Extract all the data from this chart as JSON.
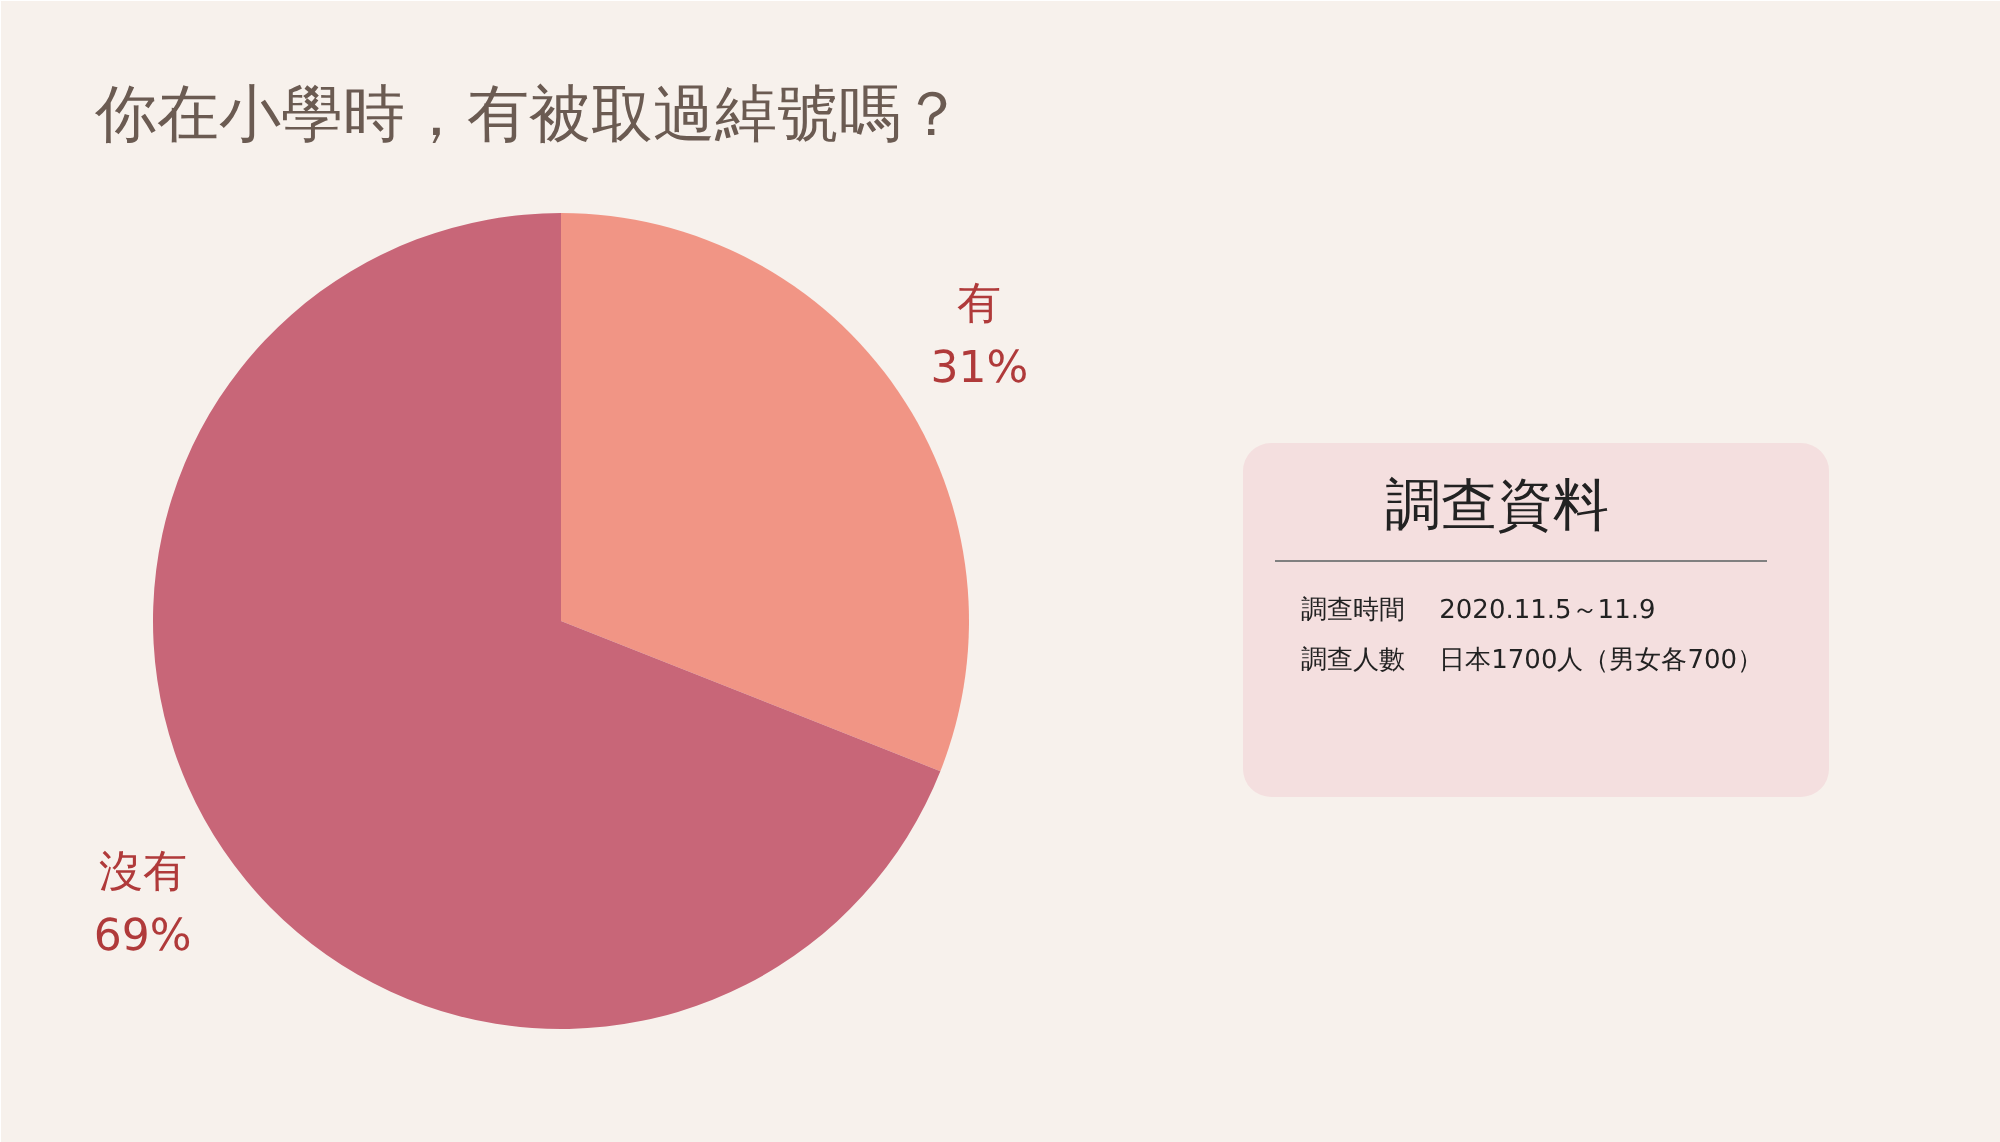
{
  "chart_data": {
    "type": "pie",
    "title": "你在小學時，有被取過綽號嗎？",
    "categories": [
      "有",
      "沒有"
    ],
    "values": [
      31,
      69
    ],
    "colors": [
      "#f19585",
      "#c86678"
    ],
    "value_labels": [
      "31%",
      "69%"
    ],
    "annotations": [
      "調查資料",
      "調查時間　 2020.11.5～11.9",
      "調查人數　 日本1700人（男女各700）"
    ]
  }
}
